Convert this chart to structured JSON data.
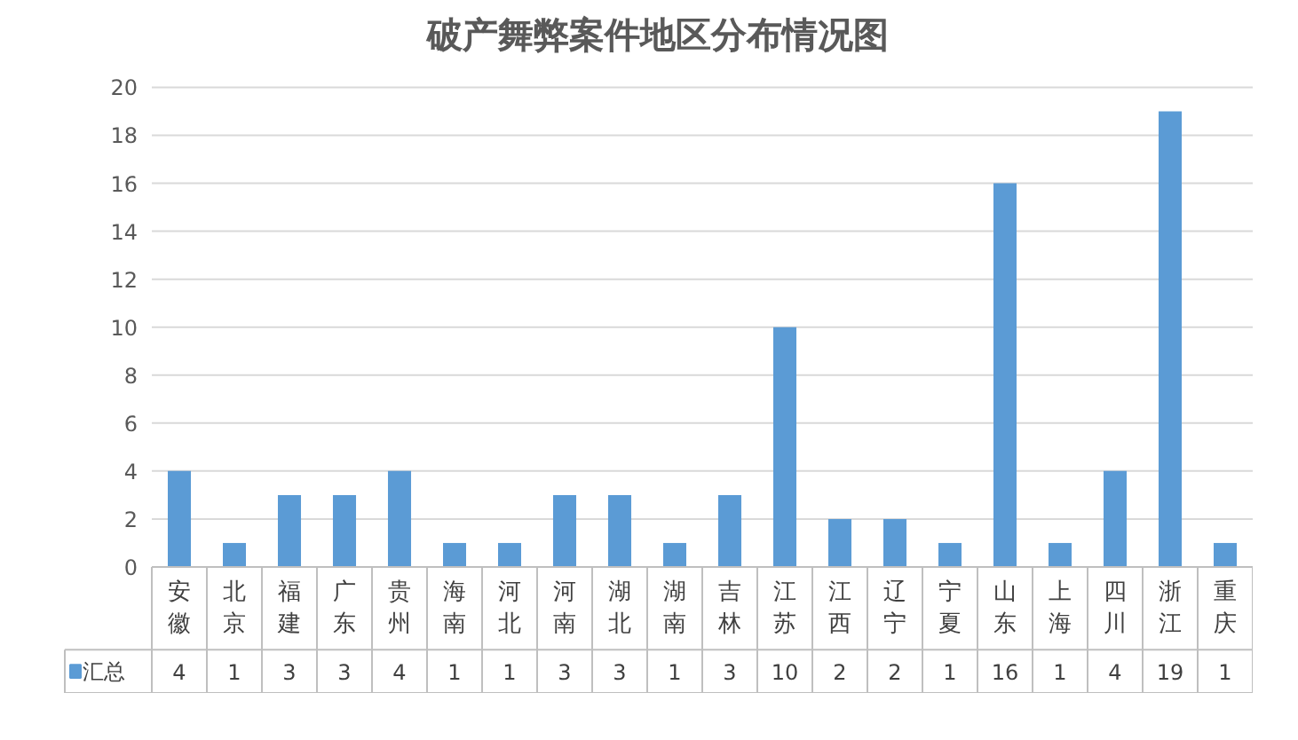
{
  "chart_data": {
    "type": "bar",
    "title": "破产舞弊案件地区分布情况图",
    "categories": [
      "安徽",
      "北京",
      "福建",
      "广东",
      "贵州",
      "海南",
      "河北",
      "河南",
      "湖北",
      "湖南",
      "吉林",
      "江苏",
      "江西",
      "辽宁",
      "宁夏",
      "山东",
      "上海",
      "四川",
      "浙江",
      "重庆"
    ],
    "series": [
      {
        "name": "汇总",
        "color": "#5b9bd5",
        "values": [
          4,
          1,
          3,
          3,
          4,
          1,
          1,
          3,
          3,
          1,
          3,
          10,
          2,
          2,
          1,
          16,
          1,
          4,
          19,
          1
        ]
      }
    ],
    "ylim": [
      0,
      20
    ],
    "yticks": [
      0,
      2,
      4,
      6,
      8,
      10,
      12,
      14,
      16,
      18,
      20
    ],
    "grid": "y",
    "data_labels": true,
    "legend": "bottom left"
  }
}
